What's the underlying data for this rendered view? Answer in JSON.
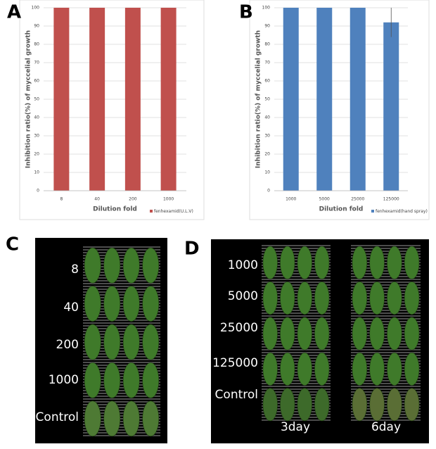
{
  "chart_data": [
    {
      "type": "bar",
      "panel": "A",
      "ylabel": "Inhibition ratio(%) of myccelial growth",
      "xlabel": "Dilution fold",
      "categories": [
        "8",
        "40",
        "200",
        "1000"
      ],
      "series": [
        {
          "name": "fenhexamid(U.L.V)",
          "color": "#c0504d",
          "values": [
            100,
            100,
            100,
            100
          ]
        }
      ],
      "ylim": [
        0,
        100
      ],
      "yticks": [
        0,
        10,
        20,
        30,
        40,
        50,
        60,
        70,
        80,
        90,
        100
      ],
      "grid": true
    },
    {
      "type": "bar",
      "panel": "B",
      "ylabel": "Inhibition ratio(%) of myccelial growth",
      "xlabel": "Dilution fold",
      "categories": [
        "1000",
        "5000",
        "25000",
        "125000"
      ],
      "series": [
        {
          "name": "fenhexamid(hand spray)",
          "color": "#4f81bd",
          "values": [
            100,
            100,
            100,
            92
          ],
          "errors": [
            0,
            0,
            0,
            8
          ]
        }
      ],
      "ylim": [
        0,
        100
      ],
      "yticks": [
        0,
        10,
        20,
        30,
        40,
        50,
        60,
        70,
        80,
        90,
        100
      ],
      "grid": true
    }
  ],
  "panels": [
    {
      "label": "C",
      "rows": [
        "8",
        "40",
        "200",
        "1000",
        "Control"
      ]
    },
    {
      "label": "D",
      "rows": [
        "1000",
        "5000",
        "25000",
        "125000",
        "Control"
      ],
      "columns": [
        "3day",
        "6day"
      ]
    }
  ]
}
